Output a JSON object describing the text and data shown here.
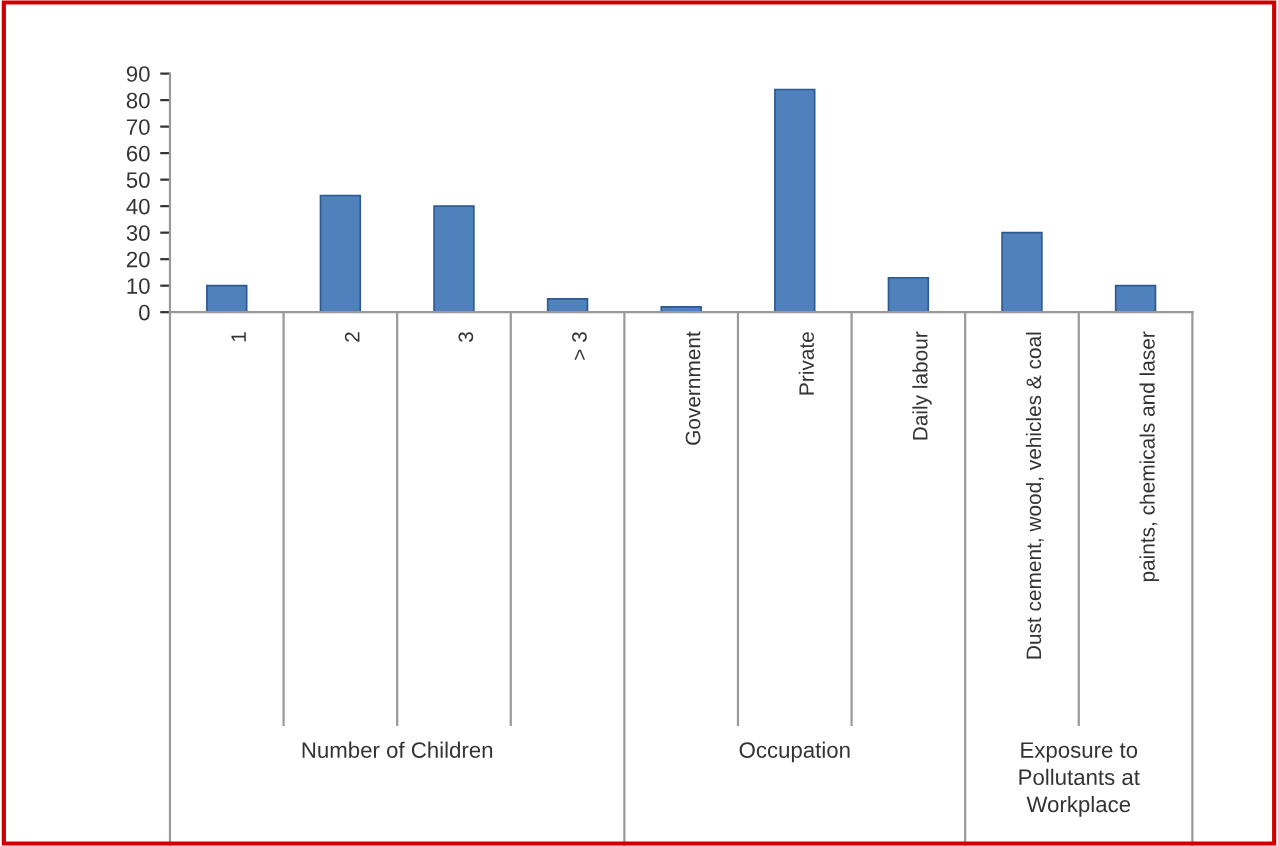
{
  "chart_data": {
    "type": "bar",
    "categories": [
      "1",
      "2",
      "3",
      "> 3",
      "Government",
      "Private",
      "Daily labour",
      "Dust cement, wood, vehicles & coal",
      "paints, chemicals and laser"
    ],
    "values": [
      10,
      44,
      40,
      5,
      2,
      84,
      13,
      30,
      10
    ],
    "color": "#4f81bd",
    "ylim": [
      0,
      90
    ],
    "yticks": [
      0,
      10,
      20,
      30,
      40,
      50,
      60,
      70,
      80,
      90
    ],
    "grid": false,
    "annotations": [
      "Number of Children",
      "Occupation",
      "Exposure to\nPollutants at\nWorkplace"
    ]
  }
}
